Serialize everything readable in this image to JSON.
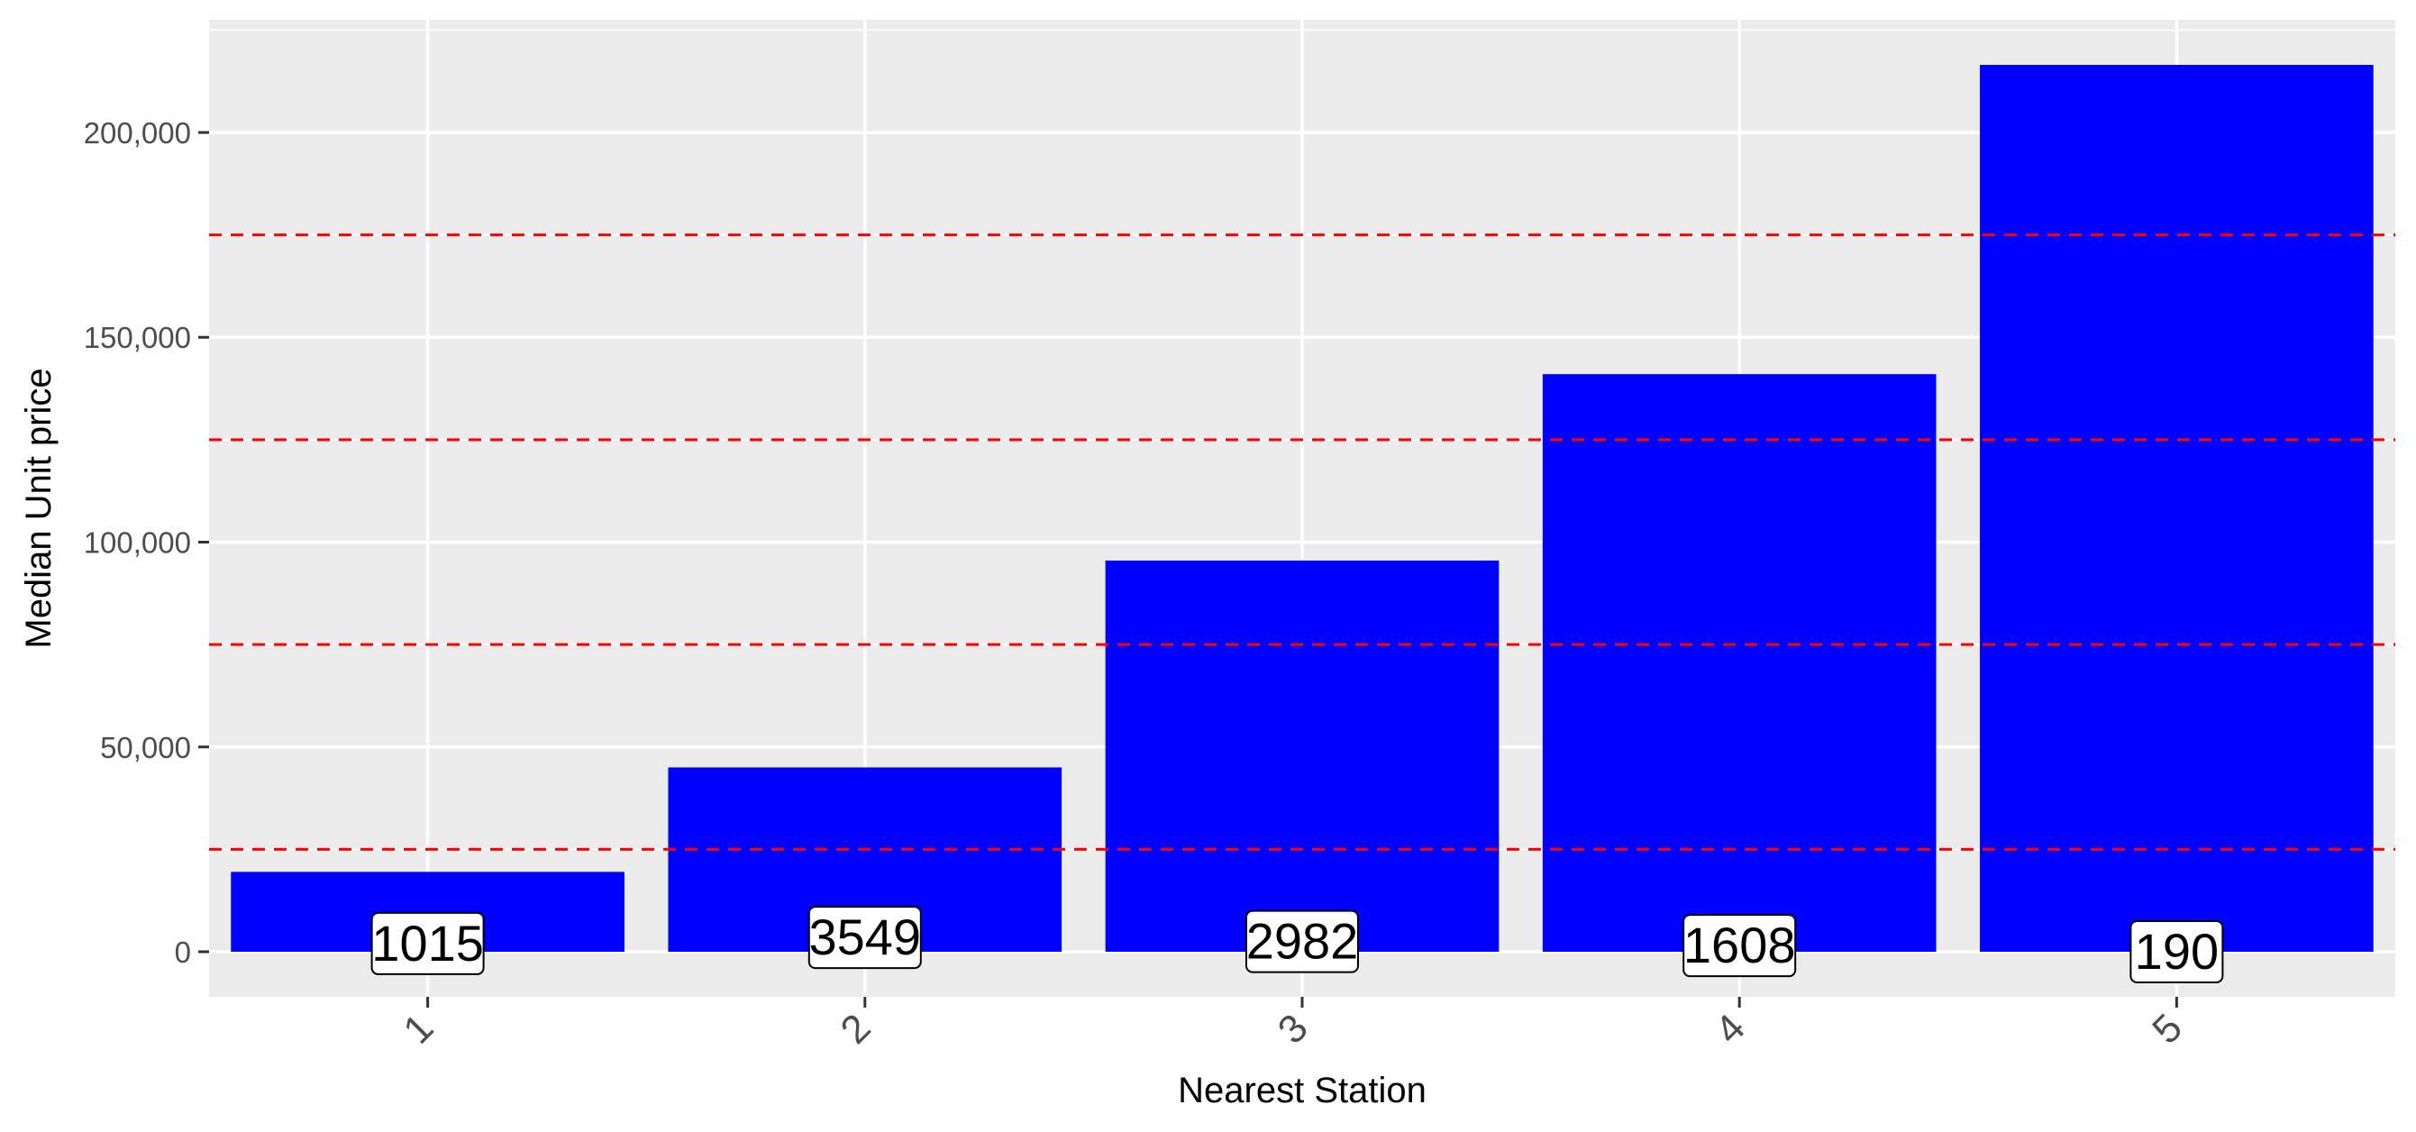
{
  "chart_data": {
    "type": "bar",
    "xlabel": "Nearest Station",
    "ylabel": "Median Unit price",
    "categories": [
      "1",
      "2",
      "3",
      "4",
      "5"
    ],
    "values": [
      19500,
      45000,
      95500,
      141000,
      216500
    ],
    "bar_labels": [
      "1015",
      "3549",
      "2982",
      "1608",
      "190"
    ],
    "bar_label_positions": [
      2000,
      3500,
      2500,
      1500,
      0
    ],
    "y_ticks": [
      0,
      50000,
      100000,
      150000,
      200000
    ],
    "y_tick_labels": [
      "0",
      "50,000",
      "100,000",
      "150,000",
      "200,000"
    ],
    "ylim": [
      -11000,
      227500
    ],
    "reference_lines": [
      25000,
      75000,
      125000,
      175000
    ],
    "grid": true,
    "legend": "none",
    "x_tick_rotation": 45,
    "colors": {
      "bar": "#0000ff",
      "reference_line": "#ff0000",
      "panel_background": "#ebebeb",
      "grid": "#ffffff"
    }
  }
}
